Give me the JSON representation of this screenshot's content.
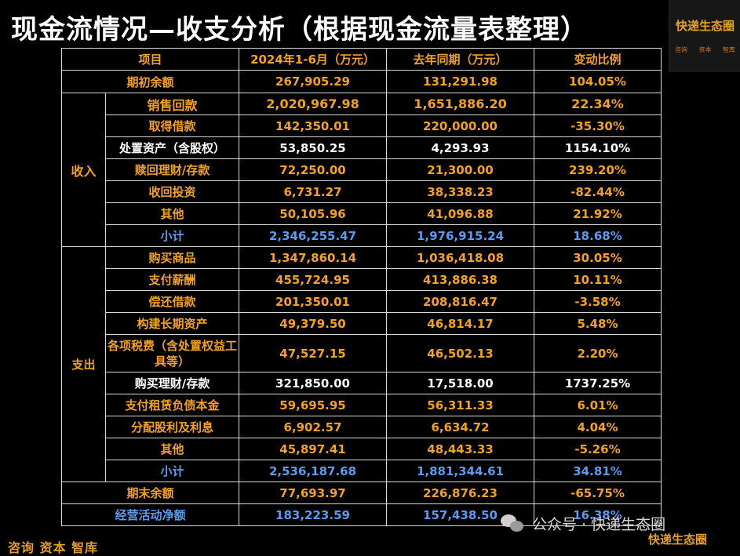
{
  "title": "现金流情况—收支分析（根据现金流量表整理）",
  "logo": {
    "text": "快递生态圈",
    "sub": "咨询 资本 智库"
  },
  "table": {
    "headers": [
      "项目",
      "2024年1-6月（万元）",
      "去年同期（万元）",
      "变动比例"
    ],
    "opening": {
      "label": "期初余额",
      "current": "267,905.29",
      "prior": "131,291.98",
      "change": "104.05%"
    },
    "income": {
      "label": "收入",
      "rows": [
        {
          "label": "销售回款",
          "current": "2,020,967.98",
          "prior": "1,651,886.20",
          "change": "22.34%"
        },
        {
          "label": "取得借款",
          "current": "142,350.01",
          "prior": "220,000.00",
          "change": "-35.30%"
        },
        {
          "label": "处置资产（含股权）",
          "current": "53,850.25",
          "prior": "4,293.93",
          "change": "1154.10%"
        },
        {
          "label": "赎回理财/存款",
          "current": "72,250.00",
          "prior": "21,300.00",
          "change": "239.20%"
        },
        {
          "label": "收回投资",
          "current": "6,731.27",
          "prior": "38,338.23",
          "change": "-82.44%"
        },
        {
          "label": "其他",
          "current": "50,105.96",
          "prior": "41,096.88",
          "change": "21.92%"
        },
        {
          "label": "小计",
          "current": "2,346,255.47",
          "prior": "1,976,915.24",
          "change": "18.68%"
        }
      ]
    },
    "expense": {
      "label": "支出",
      "rows": [
        {
          "label": "购买商品",
          "current": "1,347,860.14",
          "prior": "1,036,418.08",
          "change": "30.05%"
        },
        {
          "label": "支付薪酬",
          "current": "455,724.95",
          "prior": "413,886.38",
          "change": "10.11%"
        },
        {
          "label": "偿还借款",
          "current": "201,350.01",
          "prior": "208,816.47",
          "change": "-3.58%"
        },
        {
          "label": "构建长期资产",
          "current": "49,379.50",
          "prior": "46,814.17",
          "change": "5.48%"
        },
        {
          "label": "各项税费（含处置权益工具等）",
          "current": "47,527.15",
          "prior": "46,502.13",
          "change": "2.20%"
        },
        {
          "label": "购买理财/存款",
          "current": "321,850.00",
          "prior": "17,518.00",
          "change": "1737.25%"
        },
        {
          "label": "支付租赁负债本金",
          "current": "59,695.95",
          "prior": "56,311.33",
          "change": "6.01%"
        },
        {
          "label": "分配股利及利息",
          "current": "6,902.57",
          "prior": "6,634.72",
          "change": "4.04%"
        },
        {
          "label": "其他",
          "current": "45,897.41",
          "prior": "48,443.33",
          "change": "-5.26%"
        },
        {
          "label": "小计",
          "current": "2,536,187.68",
          "prior": "1,881,344.61",
          "change": "34.81%"
        }
      ]
    },
    "closing": {
      "label": "期末余额",
      "current": "77,693.97",
      "prior": "226,876.23",
      "change": "-65.75%"
    },
    "operating": {
      "label": "经营活动净额",
      "current": "183,223.59",
      "prior": "157,438.50",
      "change": "16.38%"
    }
  },
  "footer": {
    "left": "咨询 资本 智库",
    "right": "快递生态圈"
  },
  "watermark": "公众号 · 快递生态圈",
  "colors": {
    "orange": "#f5a21c",
    "white": "#ffffff",
    "blue": "#5b9bf0",
    "background": "#000000"
  }
}
